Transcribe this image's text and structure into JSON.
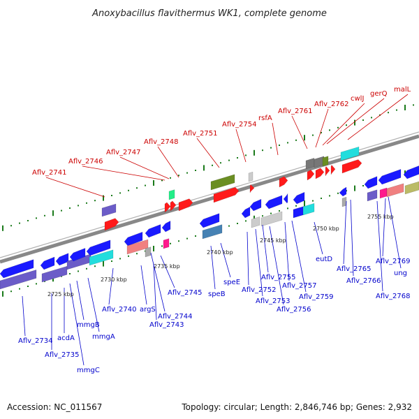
{
  "title": "Anoxybacillus flavithermus WK1, complete genome",
  "footer": {
    "accession": "Accession: NC_011567",
    "topology": "Topology: circular; Length: 2,846,746 bp; Genes: 2,932"
  },
  "colors": {
    "forward_label": "#cc0000",
    "reverse_label": "#0000cc",
    "backbone": "#888888",
    "tick": "#1a7a1a"
  },
  "forward_labels": [
    "Aflv_2741",
    "Aflv_2746",
    "Aflv_2747",
    "Aflv_2748",
    "Aflv_2751",
    "Aflv_2754",
    "rsfA",
    "Aflv_2761",
    "Aflv_2762",
    "cwlJ",
    "gerQ",
    "malL"
  ],
  "reverse_labels": [
    "Aflv_2734",
    "Aflv_2735",
    "acdA",
    "mmgC",
    "mmgB",
    "mmgA",
    "Aflv_2740",
    "argS",
    "Aflv_2743",
    "Aflv_2744",
    "Aflv_2745",
    "speB",
    "speE",
    "Aflv_2752",
    "Aflv_2753",
    "Aflv_2755",
    "Aflv_2756",
    "Aflv_2757",
    "Aflv_2759",
    "eutD",
    "Aflv_2765",
    "Aflv_2766",
    "ung",
    "Aflv_2768",
    "Aflv_2769"
  ],
  "scale_labels": [
    "2725 kbp",
    "2730 kbp",
    "2735 kbp",
    "2740 kbp",
    "2745 kbp",
    "2750 kbp",
    "2755 kbp"
  ]
}
